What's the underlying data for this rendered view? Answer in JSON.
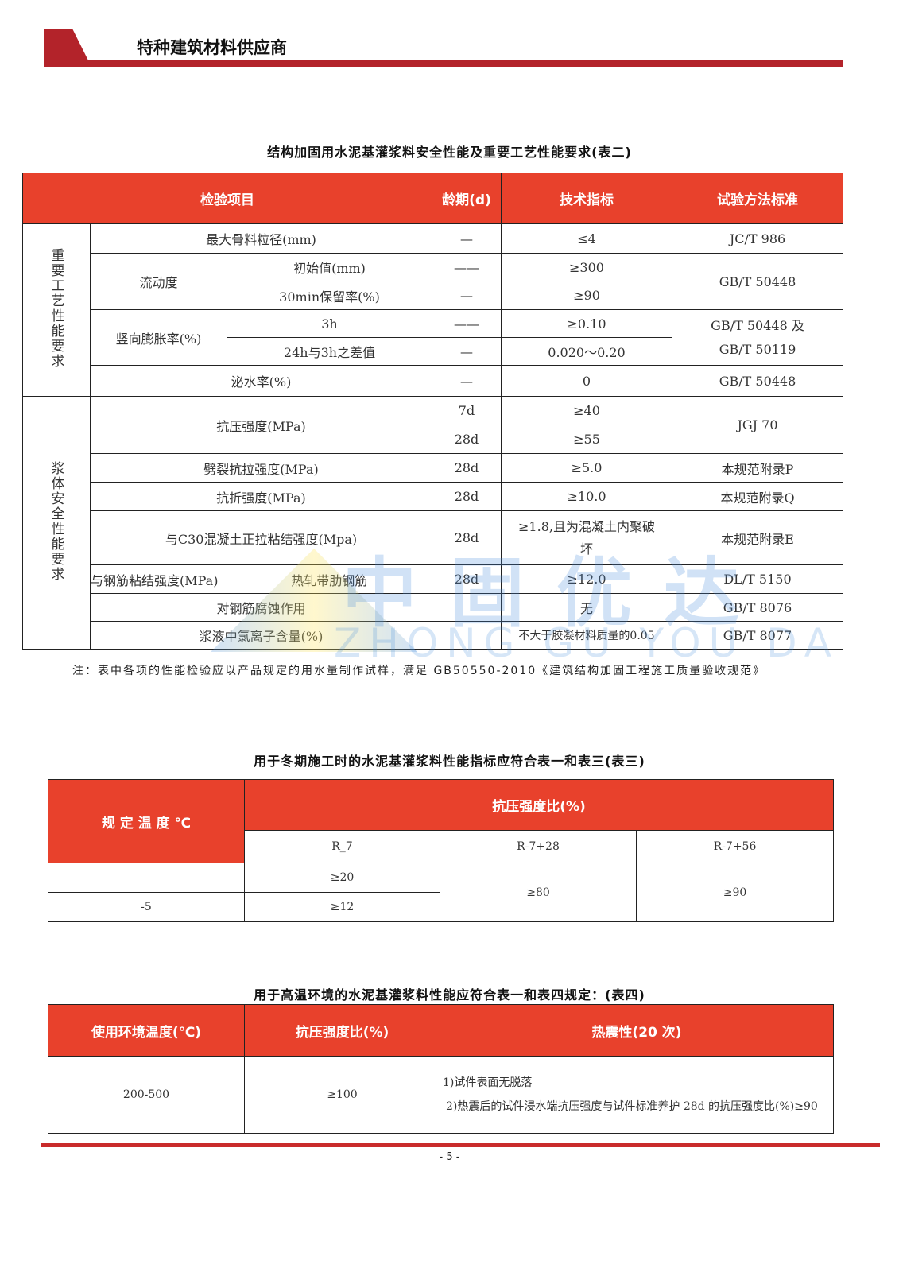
{
  "header": {
    "title": "特种建筑材料供应商"
  },
  "watermark": {
    "cn": "中固优达",
    "en": "ZHONG GU YOU DA"
  },
  "table2": {
    "caption": "结构加固用水泥基灌浆料安全性能及重要工艺性能要求(表二)",
    "headers": [
      "检验项目",
      "龄期(d)",
      "技术指标",
      "试验方法标准"
    ],
    "group1": "重要工艺性能要求",
    "group2": "浆体安全性能要求",
    "rows": {
      "r1": [
        "最大骨料粒径(mm)",
        "—",
        "≤4",
        "JC/T 986"
      ],
      "flow": "流动度",
      "r2": [
        "初始值(mm)",
        "——",
        "≥300",
        "GB/T 50448"
      ],
      "r3": [
        "30min保留率(%)",
        "—",
        "≥90"
      ],
      "exp": "竖向膨胀率(%)",
      "r4": [
        "3h",
        "——",
        "≥0.10",
        "GB/T 50448 及 GB/T 50119"
      ],
      "r5": [
        "24h与3h之差值",
        "—",
        "0.020～0.20"
      ],
      "r6": [
        "泌水率(%)",
        "—",
        "0",
        "GB/T 50448"
      ],
      "r7": [
        "抗压强度(MPa)",
        "7d",
        "≥40",
        "JGJ 70"
      ],
      "r8": [
        "28d",
        "≥55"
      ],
      "r9": [
        "劈裂抗拉强度(MPa)",
        "28d",
        "≥5.0",
        "本规范附录P"
      ],
      "r10": [
        "抗折强度(MPa)",
        "28d",
        "≥10.0",
        "本规范附录Q"
      ],
      "r11": [
        "与C30混凝土正拉粘结强度(Mpa)",
        "28d",
        "≥1.8,且为混凝土内聚破坏",
        "本规范附录E"
      ],
      "r12": [
        "与钢筋粘结强度(MPa)",
        "热轧带肋钢筋",
        "28d",
        "≥12.0",
        "DL/T 5150"
      ],
      "r13": [
        "对钢筋腐蚀作用",
        "",
        "无",
        "GB/T 8076"
      ],
      "r14": [
        "浆液中氯离子含量(%)",
        "",
        "不大于胶凝材料质量的0.05",
        "GB/T 8077"
      ]
    },
    "note": "注：表中各项的性能检验应以产品规定的用水量制作试样，满足 GB50550-2010《建筑结构加固工程施工质量验收规范》"
  },
  "table3": {
    "caption": "用于冬期施工时的水泥基灌浆料性能指标应符合表一和表三(表三)",
    "h_temp": "规 定 温 度 ℃",
    "h_ratio": "抗压强度比(%)",
    "sub": [
      "R_7",
      "R-7+28",
      "R-7+56"
    ],
    "rows": [
      [
        "",
        "≥20"
      ],
      [
        "-5",
        "≥12"
      ]
    ],
    "merged": [
      "≥80",
      "≥90"
    ]
  },
  "table4": {
    "caption": "用于高温环境的水泥基灌浆料性能应符合表一和表四规定：(表四)",
    "headers": [
      "使用环境温度(℃)",
      "抗压强度比(%)",
      "热震性(20 次)"
    ],
    "row": [
      "200-500",
      "≥100"
    ],
    "thermal": [
      "1)试件表面无脱落",
      "2)热震后的试件浸水端抗压强度与试件标准养护 28d 的抗压强度比(%)≥90"
    ]
  },
  "footer": {
    "page": "- 5 -"
  }
}
